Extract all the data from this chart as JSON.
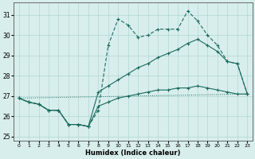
{
  "xlabel": "Humidex (Indice chaleur)",
  "bg_color": "#d8eeec",
  "line_color": "#1a6b5e",
  "grid_color": "#b0d8d4",
  "xlim": [
    -0.5,
    23.5
  ],
  "ylim": [
    24.8,
    31.6
  ],
  "xticks": [
    0,
    1,
    2,
    3,
    4,
    5,
    6,
    7,
    8,
    9,
    10,
    11,
    12,
    13,
    14,
    15,
    16,
    17,
    18,
    19,
    20,
    21,
    22,
    23
  ],
  "yticks": [
    25,
    26,
    27,
    28,
    29,
    30,
    31
  ],
  "line1_x": [
    0,
    1,
    2,
    3,
    4,
    5,
    6,
    7,
    8,
    9,
    10,
    11,
    12,
    13,
    14,
    15,
    16,
    17,
    18,
    19,
    20,
    21,
    22,
    23
  ],
  "line1_y": [
    26.9,
    26.7,
    26.6,
    26.3,
    26.3,
    25.6,
    25.6,
    25.5,
    26.3,
    29.5,
    30.8,
    30.5,
    29.9,
    30.0,
    30.3,
    30.3,
    30.3,
    31.2,
    30.7,
    30.0,
    29.5,
    28.7,
    28.6,
    27.1
  ],
  "line2_x": [
    0,
    1,
    2,
    3,
    4,
    5,
    6,
    7,
    8,
    9,
    10,
    11,
    12,
    13,
    14,
    15,
    16,
    17,
    18,
    19,
    20,
    21,
    22,
    23
  ],
  "line2_y": [
    26.9,
    26.7,
    26.6,
    26.3,
    26.3,
    25.6,
    25.6,
    25.5,
    27.2,
    27.5,
    27.8,
    28.1,
    28.4,
    28.6,
    28.9,
    29.1,
    29.3,
    29.6,
    29.8,
    29.5,
    29.2,
    28.7,
    28.6,
    27.1
  ],
  "line3_x": [
    0,
    1,
    2,
    3,
    4,
    5,
    6,
    7,
    8,
    9,
    10,
    11,
    12,
    13,
    14,
    15,
    16,
    17,
    18,
    19,
    20,
    21,
    22,
    23
  ],
  "line3_y": [
    26.9,
    26.7,
    26.6,
    26.3,
    26.3,
    25.6,
    25.6,
    25.5,
    26.5,
    26.7,
    26.9,
    27.0,
    27.1,
    27.2,
    27.3,
    27.3,
    27.4,
    27.4,
    27.5,
    27.4,
    27.3,
    27.2,
    27.1,
    27.1
  ],
  "line4_x": [
    0,
    23
  ],
  "line4_y": [
    26.9,
    27.1
  ]
}
